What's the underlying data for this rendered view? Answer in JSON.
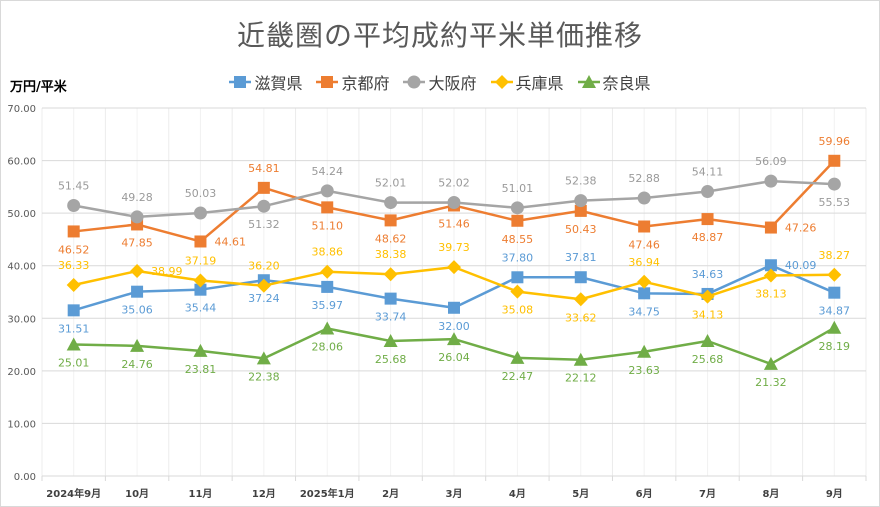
{
  "chart_data": {
    "type": "line",
    "title": "近畿圏の平均成約平米単価推移",
    "ylabel": "万円/平米",
    "xlabel": "",
    "ylim": [
      0,
      70
    ],
    "yticks": [
      "0.00",
      "10.00",
      "20.00",
      "30.00",
      "40.00",
      "50.00",
      "60.00",
      "70.00"
    ],
    "grid": true,
    "legend_position": "top",
    "categories": [
      "2024年9月",
      "10月",
      "11月",
      "12月",
      "2025年1月",
      "2月",
      "3月",
      "4月",
      "5月",
      "6月",
      "7月",
      "8月",
      "9月"
    ],
    "series": [
      {
        "name": "滋賀県",
        "color": "#5b9bd5",
        "marker": "square",
        "values": [
          31.51,
          35.06,
          35.44,
          37.24,
          35.97,
          33.74,
          32.0,
          37.8,
          37.81,
          34.75,
          34.63,
          40.09,
          34.87
        ],
        "label_pos": [
          "below",
          "below",
          "below",
          "below",
          "below",
          "below",
          "below",
          "above",
          "above",
          "below",
          "above",
          "right",
          "below"
        ]
      },
      {
        "name": "京都府",
        "color": "#ed7d31",
        "marker": "square",
        "values": [
          46.52,
          47.85,
          44.61,
          54.81,
          51.1,
          48.62,
          51.46,
          48.55,
          50.43,
          47.46,
          48.87,
          47.26,
          59.96
        ],
        "label_pos": [
          "below",
          "below",
          "right",
          "above",
          "below",
          "below",
          "below",
          "below",
          "below",
          "below",
          "below",
          "right",
          "above"
        ]
      },
      {
        "name": "大阪府",
        "color": "#a5a5a5",
        "marker": "circle",
        "values": [
          51.45,
          49.28,
          50.03,
          51.32,
          54.24,
          52.01,
          52.02,
          51.01,
          52.38,
          52.88,
          54.11,
          56.09,
          55.53
        ],
        "label_pos": [
          "above",
          "above",
          "above",
          "below",
          "above",
          "above",
          "above",
          "above",
          "above",
          "above",
          "above",
          "above",
          "below"
        ]
      },
      {
        "name": "兵庫県",
        "color": "#ffc000",
        "marker": "diamond",
        "values": [
          36.33,
          38.99,
          37.19,
          36.2,
          38.86,
          38.38,
          39.73,
          35.08,
          33.62,
          36.94,
          34.13,
          38.13,
          38.27
        ],
        "label_pos": [
          "above",
          "right",
          "above",
          "above",
          "above",
          "above",
          "above",
          "below",
          "below",
          "above",
          "below",
          "below",
          "above"
        ]
      },
      {
        "name": "奈良県",
        "color": "#70ad47",
        "marker": "triangle",
        "values": [
          25.01,
          24.76,
          23.81,
          22.38,
          28.06,
          25.68,
          26.04,
          22.47,
          22.12,
          23.63,
          25.68,
          21.32,
          28.19
        ],
        "label_pos": [
          "below",
          "below",
          "below",
          "below",
          "below",
          "below",
          "below",
          "below",
          "below",
          "below",
          "below",
          "below",
          "below"
        ]
      }
    ]
  }
}
